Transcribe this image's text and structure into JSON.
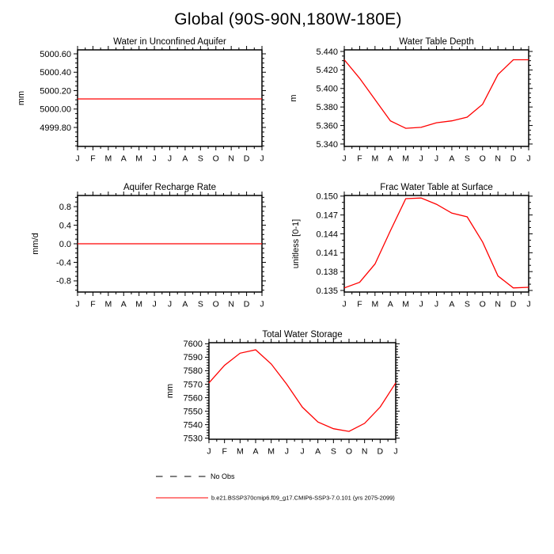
{
  "page_title": "Global (90S-90N,180W-180E)",
  "months": [
    "J",
    "F",
    "M",
    "A",
    "M",
    "J",
    "J",
    "A",
    "S",
    "O",
    "N",
    "D",
    "J"
  ],
  "legend": {
    "no_obs_label": "No Obs",
    "no_obs_color": "#000000",
    "case_label": "b.e21.BSSP370cmip6.f09_g17.CMIP6-SSP3-7.0.101 (yrs 2075-2099)",
    "case_color": "#ff0000"
  },
  "chart_data": [
    {
      "type": "line",
      "title": "Water in Unconfined Aquifer",
      "xlabel": "",
      "ylabel": "mm",
      "categories": [
        "J",
        "F",
        "M",
        "A",
        "M",
        "J",
        "J",
        "A",
        "S",
        "O",
        "N",
        "D",
        "J"
      ],
      "values": [
        5000.11,
        5000.11,
        5000.11,
        5000.11,
        5000.11,
        5000.11,
        5000.11,
        5000.11,
        5000.11,
        5000.11,
        5000.11,
        5000.11,
        5000.11
      ],
      "yticks": [
        4999.8,
        5000.0,
        5000.2,
        5000.4,
        5000.6
      ],
      "ytick_labels": [
        "4999.80",
        "5000.00",
        "5000.20",
        "5000.40",
        "5000.60"
      ],
      "ylim": [
        4999.594,
        5000.643
      ],
      "y_minor_per_major": 3,
      "color": "#ff0000"
    },
    {
      "type": "line",
      "title": "Water Table Depth",
      "xlabel": "",
      "ylabel": "m",
      "categories": [
        "J",
        "F",
        "M",
        "A",
        "M",
        "J",
        "J",
        "A",
        "S",
        "O",
        "N",
        "D",
        "J"
      ],
      "values": [
        5.431,
        5.411,
        5.388,
        5.365,
        5.357,
        5.358,
        5.363,
        5.365,
        5.369,
        5.383,
        5.415,
        5.431,
        5.431
      ],
      "yticks": [
        5.34,
        5.36,
        5.38,
        5.4,
        5.42,
        5.44
      ],
      "ytick_labels": [
        "5.340",
        "5.360",
        "5.380",
        "5.400",
        "5.420",
        "5.440"
      ],
      "ylim": [
        5.3374,
        5.4417
      ],
      "y_minor_per_major": 3,
      "color": "#ff0000"
    },
    {
      "type": "line",
      "title": "Aquifer Recharge Rate",
      "xlabel": "",
      "ylabel": "mm/d",
      "categories": [
        "J",
        "F",
        "M",
        "A",
        "M",
        "J",
        "J",
        "A",
        "S",
        "O",
        "N",
        "D",
        "J"
      ],
      "values": [
        0.0,
        0.0,
        0.0,
        0.0,
        0.0,
        0.0,
        0.0,
        0.0,
        0.0,
        0.0,
        0.0,
        0.0,
        0.0
      ],
      "yticks": [
        -0.8,
        -0.4,
        0.0,
        0.4,
        0.8
      ],
      "ytick_labels": [
        "-0.8",
        "-0.4",
        "0.0",
        "0.4",
        "0.8"
      ],
      "ylim": [
        -1.04,
        1.04
      ],
      "y_minor_per_major": 3,
      "color": "#ff0000"
    },
    {
      "type": "line",
      "title": "Frac Water Table at Surface",
      "xlabel": "",
      "ylabel": "unitless [0-1]",
      "categories": [
        "J",
        "F",
        "M",
        "A",
        "M",
        "J",
        "J",
        "A",
        "S",
        "O",
        "N",
        "D",
        "J"
      ],
      "values": [
        0.1354,
        0.1363,
        0.1392,
        0.1445,
        0.1496,
        0.1497,
        0.1487,
        0.1473,
        0.1467,
        0.1427,
        0.1373,
        0.1354,
        0.1355
      ],
      "yticks": [
        0.135,
        0.138,
        0.141,
        0.144,
        0.147,
        0.15
      ],
      "ytick_labels": [
        "0.135",
        "0.138",
        "0.141",
        "0.144",
        "0.147",
        "0.150"
      ],
      "ylim": [
        0.13475,
        0.1501
      ],
      "y_minor_per_major": 2,
      "color": "#ff0000"
    },
    {
      "type": "line",
      "title": "Total Water Storage",
      "xlabel": "",
      "ylabel": "mm",
      "categories": [
        "J",
        "F",
        "M",
        "A",
        "M",
        "J",
        "J",
        "A",
        "S",
        "O",
        "N",
        "D",
        "J"
      ],
      "values": [
        7571,
        7584,
        7593,
        7595.5,
        7585,
        7570,
        7553,
        7542,
        7537,
        7535,
        7541,
        7553,
        7571
      ],
      "yticks": [
        7530,
        7540,
        7550,
        7560,
        7570,
        7580,
        7590,
        7600
      ],
      "ytick_labels": [
        "7530",
        "7540",
        "7550",
        "7560",
        "7570",
        "7580",
        "7590",
        "7600"
      ],
      "ylim": [
        7529.2,
        7600.8
      ],
      "y_minor_per_major": 4,
      "color": "#ff0000"
    }
  ]
}
